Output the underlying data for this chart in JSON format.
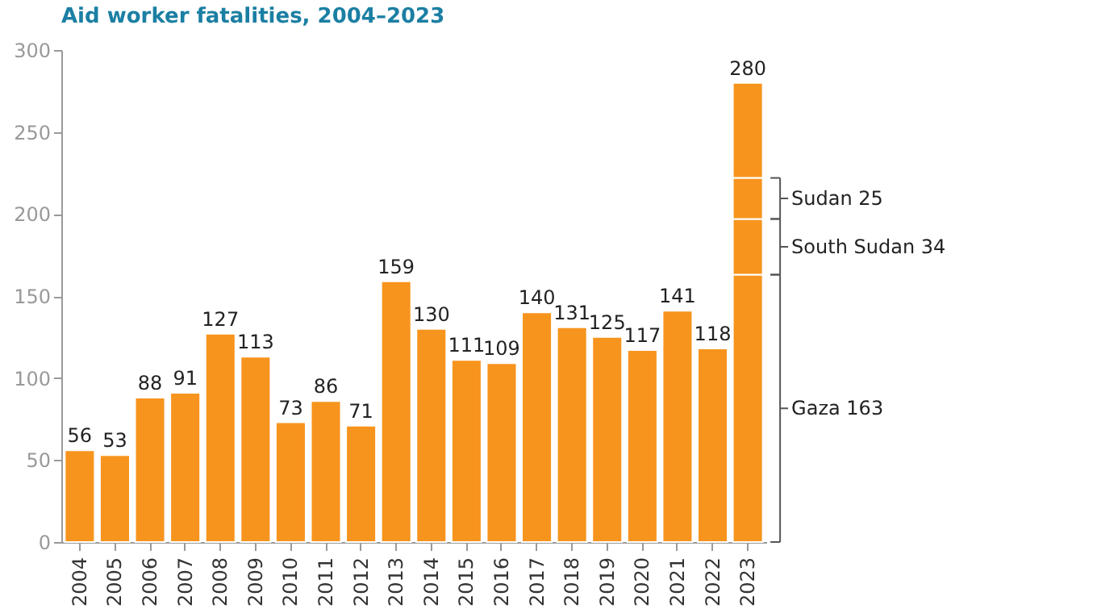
{
  "chart_data": {
    "type": "bar",
    "title": "Aid worker fatalities, 2004–2023",
    "categories": [
      "2004",
      "2005",
      "2006",
      "2007",
      "2008",
      "2009",
      "2010",
      "2011",
      "2012",
      "2013",
      "2014",
      "2015",
      "2016",
      "2017",
      "2018",
      "2019",
      "2020",
      "2021",
      "2022",
      "2023"
    ],
    "stacked": true,
    "series": [
      {
        "color": "#f7941d",
        "values": [
          56,
          53,
          88,
          91,
          127,
          113,
          73,
          86,
          71,
          159,
          130,
          111,
          109,
          140,
          131,
          125,
          117,
          141,
          118,
          163
        ]
      },
      {
        "color": "#f7941d",
        "values": [
          null,
          null,
          null,
          null,
          null,
          null,
          null,
          null,
          null,
          null,
          null,
          null,
          null,
          null,
          null,
          null,
          null,
          null,
          null,
          34
        ]
      },
      {
        "color": "#f7941d",
        "values": [
          null,
          null,
          null,
          null,
          null,
          null,
          null,
          null,
          null,
          null,
          null,
          null,
          null,
          null,
          null,
          null,
          null,
          null,
          null,
          25
        ]
      },
      {
        "color": "#f7941d",
        "values": [
          null,
          null,
          null,
          null,
          null,
          null,
          null,
          null,
          null,
          null,
          null,
          null,
          null,
          null,
          null,
          null,
          null,
          null,
          null,
          58
        ]
      }
    ],
    "totals": [
      "56",
      "53",
      "88",
      "91",
      "127",
      "113",
      "73",
      "86",
      "71",
      "159",
      "130",
      "111",
      "109",
      "140",
      "131",
      "125",
      "117",
      "141",
      "118",
      "280"
    ],
    "annotations": [
      "Gaza 163",
      "South Sudan 34",
      "Sudan 25"
    ],
    "ylim": [
      0,
      300
    ],
    "yticks": [
      0,
      50,
      100,
      150,
      200,
      250,
      300
    ],
    "grid": false,
    "legend": false
  }
}
